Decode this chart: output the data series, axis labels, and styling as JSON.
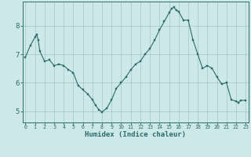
{
  "title": "",
  "xlabel": "Humidex (Indice chaleur)",
  "ylabel": "",
  "background_color": "#cce8e8",
  "grid_color": "#aacccc",
  "line_color": "#2d6b6b",
  "marker_color": "#2d6b6b",
  "x": [
    0,
    0.5,
    1,
    1.17,
    1.33,
    1.5,
    2,
    2.5,
    3,
    3.5,
    4,
    4.5,
    5,
    5.5,
    6,
    6.5,
    7,
    7.33,
    7.67,
    8,
    8.5,
    9,
    9.5,
    10,
    10.5,
    11,
    11.5,
    12,
    12.5,
    13,
    13.5,
    14,
    14.5,
    15,
    15.25,
    15.5,
    15.75,
    16,
    16.5,
    17,
    17.5,
    18,
    18.5,
    19,
    19.5,
    20,
    20.5,
    21,
    21.5,
    22,
    22.25,
    22.5,
    23
  ],
  "y": [
    6.9,
    7.3,
    7.6,
    7.7,
    7.5,
    7.1,
    6.75,
    6.8,
    6.6,
    6.65,
    6.6,
    6.45,
    6.35,
    5.9,
    5.75,
    5.6,
    5.4,
    5.2,
    5.05,
    4.97,
    5.1,
    5.4,
    5.8,
    6.0,
    6.2,
    6.45,
    6.65,
    6.75,
    7.0,
    7.2,
    7.5,
    7.85,
    8.15,
    8.45,
    8.6,
    8.65,
    8.55,
    8.5,
    8.2,
    8.2,
    7.5,
    7.0,
    6.5,
    6.6,
    6.5,
    6.2,
    5.95,
    6.0,
    5.4,
    5.35,
    5.3,
    5.38,
    5.38
  ],
  "yticks": [
    5,
    6,
    7,
    8
  ],
  "xticks": [
    0,
    1,
    2,
    3,
    4,
    5,
    6,
    7,
    8,
    9,
    10,
    11,
    12,
    13,
    14,
    15,
    16,
    17,
    18,
    19,
    20,
    21,
    22,
    23
  ],
  "xlim": [
    -0.3,
    23.3
  ],
  "ylim": [
    4.6,
    8.85
  ]
}
